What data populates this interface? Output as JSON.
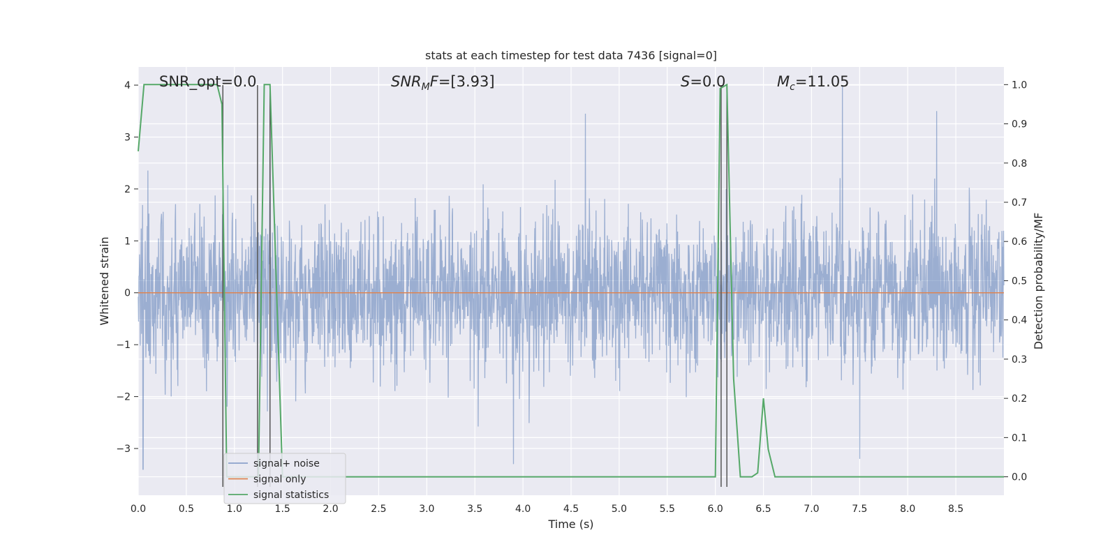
{
  "chart_data": {
    "type": "line",
    "title": "stats at each timestep for test data 7436 [signal=0]",
    "xlabel": "Time (s)",
    "ylabel_left": "Whitened strain",
    "ylabel_right": "Detection probability/MF",
    "xlim": [
      0.0,
      9.0
    ],
    "ylim_left": [
      -3.9,
      4.35
    ],
    "ylim_right": [
      -0.047,
      1.045
    ],
    "x_ticks": [
      "0.0",
      "0.5",
      "1.0",
      "1.5",
      "2.0",
      "2.5",
      "3.0",
      "3.5",
      "4.0",
      "4.5",
      "5.0",
      "5.5",
      "6.0",
      "6.5",
      "7.0",
      "7.5",
      "8.0",
      "8.5"
    ],
    "y_left_ticks": [
      "−3",
      "−2",
      "−1",
      "0",
      "1",
      "2",
      "3",
      "4"
    ],
    "y_right_ticks": [
      "0.0",
      "0.1",
      "0.2",
      "0.3",
      "0.4",
      "0.5",
      "0.6",
      "0.7",
      "0.8",
      "0.9",
      "1.0"
    ],
    "grid": true,
    "legend_position": "lower-left",
    "annotations": {
      "snr_opt": "SNR_opt=0.0",
      "snr_mf": "SNR_MF=[3.93]",
      "s": "S=0.0",
      "mc": "M_c=11.05"
    },
    "vertical_markers_s": [
      0.88,
      1.24,
      1.37,
      6.06,
      6.12
    ],
    "series": [
      {
        "name": "signal+ noise",
        "color": "#4c72b0",
        "description_values": "dense whitened strain noise, roughly within [-3.4, 4.0]",
        "peaks": [
          [
            0.05,
            -3.4
          ],
          [
            1.37,
            3.95
          ],
          [
            7.32,
            4.0
          ],
          [
            4.65,
            3.45
          ],
          [
            8.3,
            3.5
          ],
          [
            3.9,
            -3.3
          ],
          [
            7.5,
            -3.2
          ]
        ]
      },
      {
        "name": "signal only",
        "color": "#dd8452",
        "x": [
          0.0,
          9.0
        ],
        "y": [
          0.0,
          0.0
        ]
      },
      {
        "name": "signal statistics",
        "color": "#55a868",
        "x": [
          0.0,
          0.06,
          0.12,
          0.5,
          0.82,
          0.87,
          0.92,
          1.2,
          1.25,
          1.31,
          1.37,
          1.5,
          6.0,
          6.05,
          6.12,
          6.19,
          6.26,
          6.38,
          6.44,
          6.5,
          6.55,
          6.62,
          9.0
        ],
        "y": [
          0.83,
          1.0,
          1.0,
          1.0,
          1.0,
          0.95,
          0.0,
          0.0,
          0.0,
          1.0,
          1.0,
          0.0,
          0.0,
          0.99,
          1.0,
          0.25,
          0.0,
          0.0,
          0.01,
          0.2,
          0.07,
          0.0,
          0.0
        ]
      }
    ]
  }
}
